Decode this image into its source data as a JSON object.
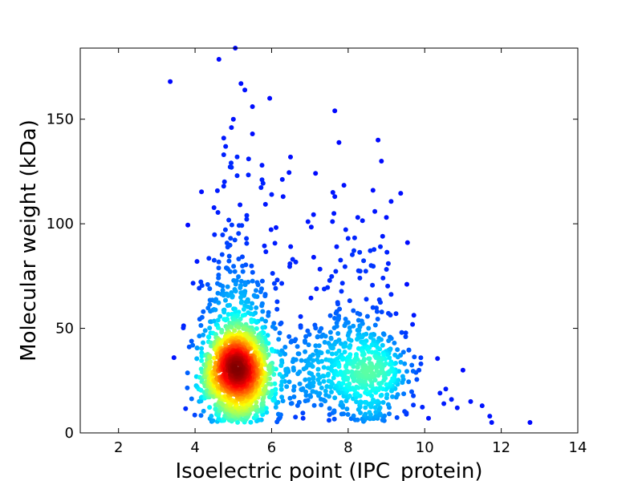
{
  "chart_data": {
    "type": "scatter",
    "title": "",
    "xlabel": "Isoelectric point (IPC_protein)",
    "ylabel": "Molecular weight (kDa)",
    "xlim": [
      1,
      14
    ],
    "ylim": [
      0,
      184
    ],
    "xticks": [
      2,
      4,
      6,
      8,
      10,
      12,
      14
    ],
    "yticks": [
      0,
      50,
      100,
      150
    ],
    "grid": false,
    "legend": "none",
    "colormap": "jet (point density)",
    "clusters": [
      {
        "center_pi": 5.1,
        "center_mw": 28,
        "spread_pi": 0.45,
        "spread_mw": 12,
        "count": 1500
      },
      {
        "center_pi": 8.6,
        "center_mw": 27,
        "spread_pi": 0.55,
        "spread_mw": 12,
        "count": 450
      },
      {
        "center_pi": 7.0,
        "center_mw": 30,
        "spread_pi": 0.9,
        "spread_mw": 14,
        "count": 300
      }
    ],
    "outliers": [
      {
        "x": 3.35,
        "y": 168
      },
      {
        "x": 5.05,
        "y": 184
      },
      {
        "x": 5.2,
        "y": 167
      },
      {
        "x": 5.3,
        "y": 164
      },
      {
        "x": 5.95,
        "y": 160
      },
      {
        "x": 5.5,
        "y": 156
      },
      {
        "x": 7.65,
        "y": 154
      },
      {
        "x": 5.0,
        "y": 150
      },
      {
        "x": 4.95,
        "y": 146
      },
      {
        "x": 5.5,
        "y": 143
      },
      {
        "x": 4.75,
        "y": 141
      },
      {
        "x": 4.8,
        "y": 137
      },
      {
        "x": 4.75,
        "y": 133
      },
      {
        "x": 5.1,
        "y": 132
      },
      {
        "x": 5.4,
        "y": 131
      },
      {
        "x": 5.75,
        "y": 128
      },
      {
        "x": 4.95,
        "y": 127
      },
      {
        "x": 5.1,
        "y": 123
      },
      {
        "x": 5.75,
        "y": 121
      },
      {
        "x": 4.75,
        "y": 118
      },
      {
        "x": 8.65,
        "y": 116
      },
      {
        "x": 7.6,
        "y": 115
      },
      {
        "x": 7.65,
        "y": 113
      },
      {
        "x": 6.0,
        "y": 114
      },
      {
        "x": 6.3,
        "y": 113
      },
      {
        "x": 9.0,
        "y": 103
      },
      {
        "x": 8.25,
        "y": 103
      },
      {
        "x": 6.95,
        "y": 101
      },
      {
        "x": 8.0,
        "y": 93
      },
      {
        "x": 9.55,
        "y": 91
      },
      {
        "x": 7.7,
        "y": 89
      },
      {
        "x": 7.1,
        "y": 84
      },
      {
        "x": 6.55,
        "y": 83
      },
      {
        "x": 4.05,
        "y": 82
      },
      {
        "x": 8.9,
        "y": 94
      },
      {
        "x": 8.6,
        "y": 80
      },
      {
        "x": 9.05,
        "y": 81
      },
      {
        "x": 3.45,
        "y": 36
      },
      {
        "x": 12.75,
        "y": 5
      },
      {
        "x": 11.75,
        "y": 5
      },
      {
        "x": 11.7,
        "y": 8
      },
      {
        "x": 11.5,
        "y": 13
      },
      {
        "x": 11.2,
        "y": 15
      },
      {
        "x": 11.0,
        "y": 30
      },
      {
        "x": 10.85,
        "y": 12
      },
      {
        "x": 10.55,
        "y": 21
      },
      {
        "x": 10.4,
        "y": 19
      },
      {
        "x": 10.5,
        "y": 14
      },
      {
        "x": 10.1,
        "y": 7
      },
      {
        "x": 10.7,
        "y": 16
      },
      {
        "x": 9.9,
        "y": 33
      },
      {
        "x": 9.85,
        "y": 30
      },
      {
        "x": 9.4,
        "y": 48
      },
      {
        "x": 9.25,
        "y": 57
      }
    ]
  }
}
